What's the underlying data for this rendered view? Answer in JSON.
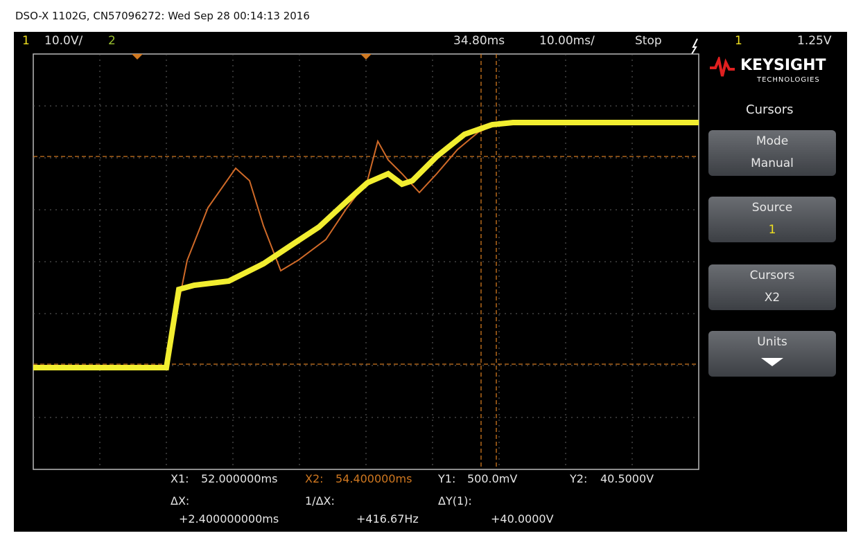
{
  "header": {
    "title": "DSO-X 1102G, CN57096272: Wed Sep 28 00:14:13 2016"
  },
  "status_bar": {
    "ch1_label": "1",
    "ch1_scale": "10.0V/",
    "ch2_label": "2",
    "time_delay": "34.80ms",
    "time_scale": "10.00ms/",
    "run_state": "Stop",
    "trigger_source": "1",
    "trigger_level": "1.25V"
  },
  "brand": {
    "name": "KEYSIGHT",
    "sub": "TECHNOLOGIES"
  },
  "menu": {
    "title": "Cursors",
    "buttons": [
      {
        "label": "Mode",
        "value": "Manual"
      },
      {
        "label": "Source",
        "value": "1"
      },
      {
        "label": "Cursors",
        "value": "X2"
      },
      {
        "label": "Units"
      }
    ]
  },
  "readout": {
    "x1_label": "X1:",
    "x1_value": "52.000000ms",
    "x2_label": "X2:",
    "x2_value": "54.400000ms",
    "y1_label": "Y1:",
    "y1_value": "500.0mV",
    "y2_label": "Y2:",
    "y2_value": "40.5000V",
    "dx_label": "ΔX:",
    "dx_value": "+2.400000000ms",
    "inv_dx_label": "1/ΔX:",
    "inv_dx_value": "+416.67Hz",
    "dy_label": "ΔY(1):",
    "dy_value": "+40.0000V"
  }
}
